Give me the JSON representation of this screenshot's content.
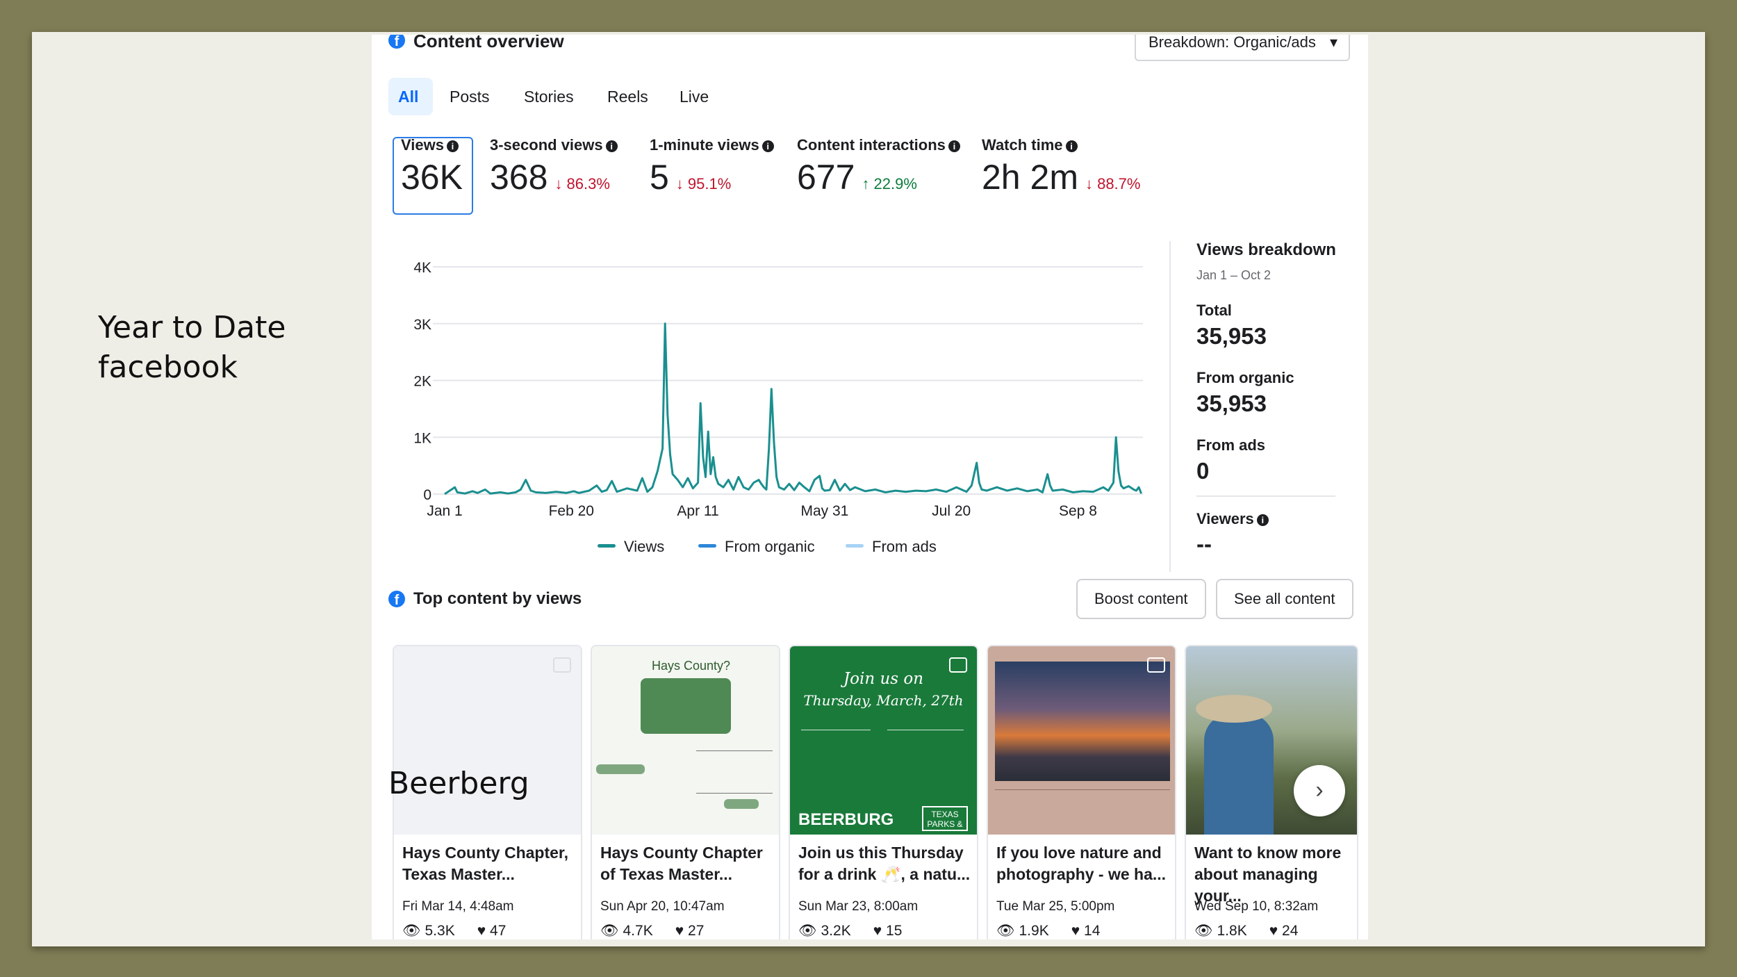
{
  "slide": {
    "side_title_line1": "Year to Date",
    "side_title_line2": "facebook",
    "overlay_label": "Beerberg"
  },
  "header": {
    "title": "Content overview",
    "breakdown_select": "Breakdown: Organic/ads"
  },
  "tabs": [
    "All",
    "Posts",
    "Stories",
    "Reels",
    "Live"
  ],
  "metrics": [
    {
      "label": "Views",
      "value": "36K",
      "change": ""
    },
    {
      "label": "3-second views",
      "value": "368",
      "change": "↓ 86.3%"
    },
    {
      "label": "1-minute views",
      "value": "5",
      "change": "↓ 95.1%"
    },
    {
      "label": "Content interactions",
      "value": "677",
      "change": "↑ 22.9%"
    },
    {
      "label": "Watch time",
      "value": "2h 2m",
      "change": "↓ 88.7%"
    }
  ],
  "views_breakdown": {
    "title": "Views breakdown",
    "date_range": "Jan 1 – Oct 2",
    "total_label": "Total",
    "total_value": "35,953",
    "organic_label": "From organic",
    "organic_value": "35,953",
    "ads_label": "From ads",
    "ads_value": "0",
    "viewers_label": "Viewers",
    "viewers_value": "--"
  },
  "chart_data": {
    "type": "line",
    "title": "",
    "xlabel": "",
    "ylabel": "",
    "x_ticks": [
      "Jan 1",
      "Feb 20",
      "Apr 11",
      "May 31",
      "Jul 20",
      "Sep 8"
    ],
    "y_ticks": [
      "0",
      "1K",
      "2K",
      "3K",
      "4K"
    ],
    "ylim": [
      0,
      4000
    ],
    "x_range_days": [
      0,
      274
    ],
    "grid": true,
    "legend_position": "bottom",
    "series": [
      {
        "name": "Views",
        "color": "#1b8f8f",
        "points": [
          [
            0,
            0
          ],
          [
            2,
            60
          ],
          [
            4,
            120
          ],
          [
            5,
            30
          ],
          [
            8,
            10
          ],
          [
            11,
            50
          ],
          [
            13,
            20
          ],
          [
            16,
            80
          ],
          [
            18,
            10
          ],
          [
            22,
            30
          ],
          [
            25,
            10
          ],
          [
            28,
            30
          ],
          [
            30,
            80
          ],
          [
            32,
            250
          ],
          [
            34,
            60
          ],
          [
            36,
            30
          ],
          [
            40,
            20
          ],
          [
            44,
            40
          ],
          [
            48,
            20
          ],
          [
            51,
            50
          ],
          [
            53,
            20
          ],
          [
            57,
            60
          ],
          [
            60,
            150
          ],
          [
            62,
            40
          ],
          [
            64,
            70
          ],
          [
            66,
            230
          ],
          [
            68,
            40
          ],
          [
            72,
            100
          ],
          [
            76,
            60
          ],
          [
            78,
            280
          ],
          [
            80,
            40
          ],
          [
            82,
            120
          ],
          [
            84,
            400
          ],
          [
            86,
            800
          ],
          [
            87,
            3000
          ],
          [
            88,
            1400
          ],
          [
            89,
            700
          ],
          [
            90,
            350
          ],
          [
            92,
            250
          ],
          [
            94,
            120
          ],
          [
            96,
            280
          ],
          [
            98,
            100
          ],
          [
            100,
            200
          ],
          [
            101,
            1600
          ],
          [
            102,
            650
          ],
          [
            103,
            300
          ],
          [
            104,
            1100
          ],
          [
            105,
            350
          ],
          [
            106,
            650
          ],
          [
            107,
            300
          ],
          [
            108,
            180
          ],
          [
            110,
            120
          ],
          [
            112,
            250
          ],
          [
            114,
            80
          ],
          [
            116,
            300
          ],
          [
            118,
            120
          ],
          [
            120,
            80
          ],
          [
            122,
            200
          ],
          [
            124,
            250
          ],
          [
            125,
            180
          ],
          [
            126,
            120
          ],
          [
            127,
            80
          ],
          [
            128,
            800
          ],
          [
            129,
            1850
          ],
          [
            130,
            900
          ],
          [
            131,
            300
          ],
          [
            132,
            120
          ],
          [
            134,
            80
          ],
          [
            136,
            180
          ],
          [
            138,
            70
          ],
          [
            140,
            200
          ],
          [
            142,
            120
          ],
          [
            144,
            50
          ],
          [
            146,
            250
          ],
          [
            148,
            320
          ],
          [
            149,
            100
          ],
          [
            150,
            60
          ],
          [
            152,
            70
          ],
          [
            154,
            250
          ],
          [
            156,
            60
          ],
          [
            158,
            180
          ],
          [
            160,
            70
          ],
          [
            162,
            120
          ],
          [
            166,
            50
          ],
          [
            170,
            80
          ],
          [
            174,
            30
          ],
          [
            178,
            60
          ],
          [
            182,
            40
          ],
          [
            186,
            60
          ],
          [
            190,
            50
          ],
          [
            194,
            80
          ],
          [
            198,
            40
          ],
          [
            202,
            120
          ],
          [
            204,
            80
          ],
          [
            206,
            40
          ],
          [
            208,
            150
          ],
          [
            210,
            550
          ],
          [
            211,
            200
          ],
          [
            212,
            80
          ],
          [
            214,
            60
          ],
          [
            218,
            120
          ],
          [
            222,
            60
          ],
          [
            226,
            100
          ],
          [
            230,
            50
          ],
          [
            234,
            80
          ],
          [
            236,
            30
          ],
          [
            238,
            350
          ],
          [
            239,
            150
          ],
          [
            240,
            60
          ],
          [
            244,
            80
          ],
          [
            248,
            30
          ],
          [
            252,
            50
          ],
          [
            256,
            40
          ],
          [
            260,
            120
          ],
          [
            262,
            60
          ],
          [
            264,
            200
          ],
          [
            265,
            1000
          ],
          [
            266,
            400
          ],
          [
            267,
            150
          ],
          [
            268,
            100
          ],
          [
            270,
            140
          ],
          [
            272,
            80
          ],
          [
            273,
            60
          ],
          [
            274,
            120
          ],
          [
            275,
            10
          ]
        ]
      },
      {
        "name": "From organic",
        "color": "#2d87d8",
        "values": []
      },
      {
        "name": "From ads",
        "color": "#a7d3f5",
        "values": []
      }
    ]
  },
  "top_content": {
    "title": "Top content by views",
    "boost_button": "Boost content",
    "see_all_button": "See all content",
    "cards": [
      {
        "title": "Hays County Chapter, Texas Master...",
        "date": "Fri Mar 14, 4:48am",
        "views": "5.3K",
        "likes": "47"
      },
      {
        "title": "Hays County Chapter of Texas Master...",
        "date": "Sun Apr 20, 10:47am",
        "views": "4.7K",
        "likes": "27"
      },
      {
        "title": "Join us this Thursday for a drink 🥂, a natu...",
        "date": "Sun Mar 23, 8:00am",
        "views": "3.2K",
        "likes": "15"
      },
      {
        "title": "If you love nature and photography - we ha...",
        "date": "Tue Mar 25, 5:00pm",
        "views": "1.9K",
        "likes": "14"
      },
      {
        "title": "Want to know more about managing your...",
        "date": "Wed Sep 10, 8:32am",
        "views": "1.8K",
        "likes": "24"
      }
    ],
    "thumb_texts": {
      "card2_heading": "Hays County?",
      "card3_line1": "Join us on",
      "card3_line2": "Thursday, March, 27th",
      "card3_brand": "BEERBURG",
      "card3_badge": "TEXAS PARKS &"
    }
  }
}
